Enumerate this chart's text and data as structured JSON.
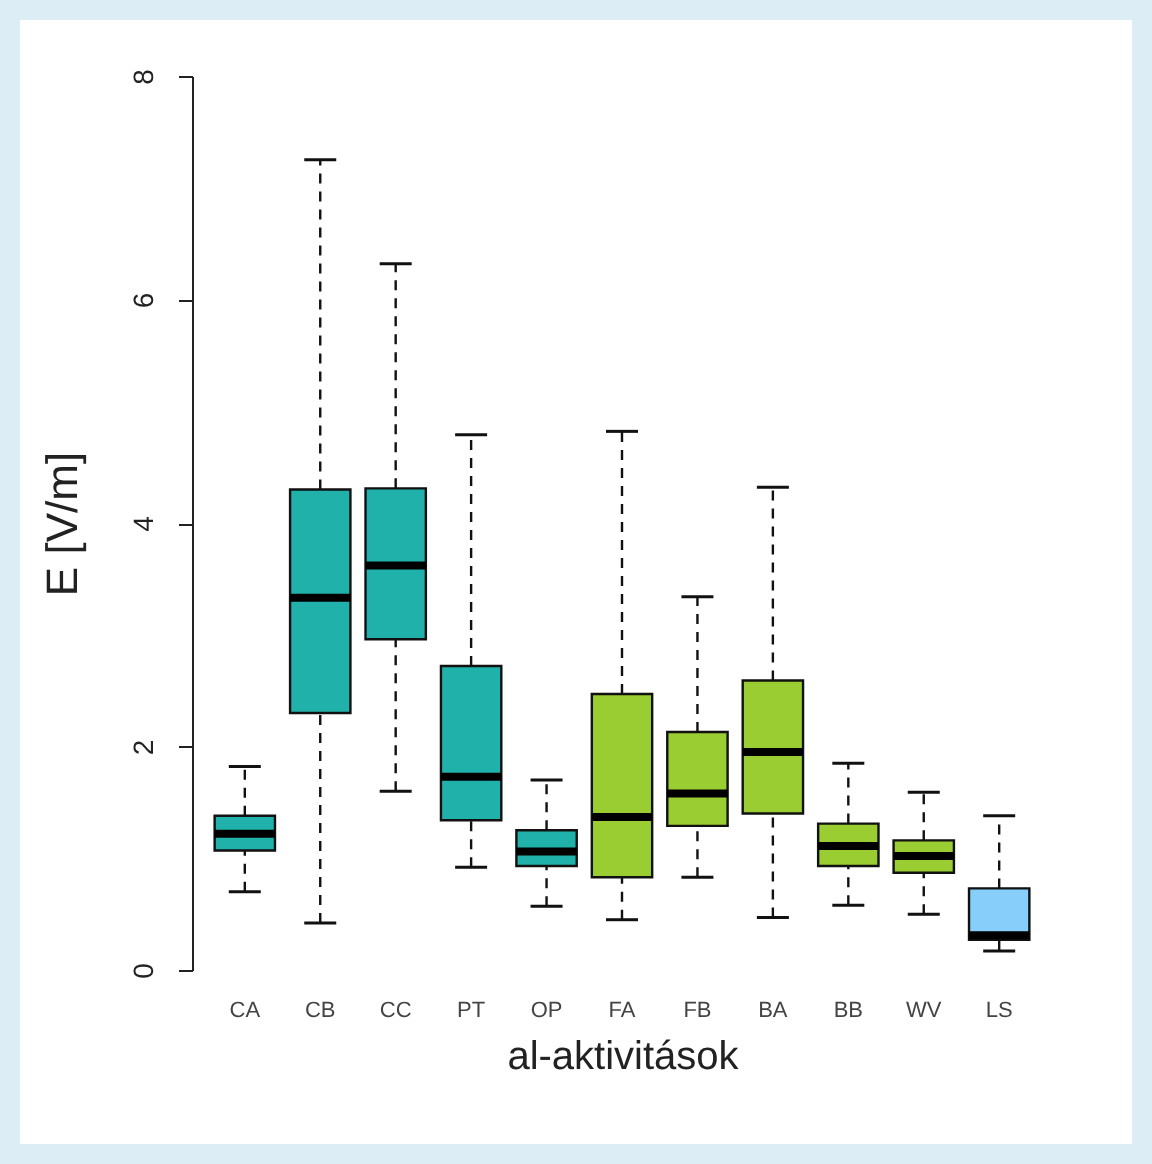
{
  "chart_data": {
    "type": "box",
    "xlabel": "al-aktivitások",
    "ylabel": "E [V/m]",
    "ylim": [
      0,
      8
    ],
    "yticks": [
      0,
      2,
      4,
      6,
      8
    ],
    "line_style": "dashed",
    "categories": [
      "CA",
      "CB",
      "CC",
      "PT",
      "OP",
      "FA",
      "FB",
      "BA",
      "BB",
      "WV",
      "LS"
    ],
    "colors": [
      "#20b2aa",
      "#20b2aa",
      "#20b2aa",
      "#20b2aa",
      "#20b2aa",
      "#9acd32",
      "#9acd32",
      "#9acd32",
      "#9acd32",
      "#9acd32",
      "#87cefa"
    ],
    "boxes": [
      {
        "low": 0.7,
        "q1": 1.07,
        "median": 1.22,
        "q3": 1.38,
        "high": 1.82
      },
      {
        "low": 0.42,
        "q1": 2.3,
        "median": 3.33,
        "q3": 4.3,
        "high": 7.25
      },
      {
        "low": 1.6,
        "q1": 2.96,
        "median": 3.62,
        "q3": 4.31,
        "high": 6.32
      },
      {
        "low": 0.92,
        "q1": 1.34,
        "median": 1.73,
        "q3": 2.72,
        "high": 4.79
      },
      {
        "low": 0.57,
        "q1": 0.93,
        "median": 1.06,
        "q3": 1.25,
        "high": 1.7
      },
      {
        "low": 0.45,
        "q1": 0.83,
        "median": 1.37,
        "q3": 2.47,
        "high": 4.82
      },
      {
        "low": 0.83,
        "q1": 1.29,
        "median": 1.58,
        "q3": 2.13,
        "high": 3.34
      },
      {
        "low": 0.47,
        "q1": 1.4,
        "median": 1.95,
        "q3": 2.59,
        "high": 4.32
      },
      {
        "low": 0.58,
        "q1": 0.93,
        "median": 1.11,
        "q3": 1.31,
        "high": 1.85
      },
      {
        "low": 0.5,
        "q1": 0.87,
        "median": 1.02,
        "q3": 1.16,
        "high": 1.59
      },
      {
        "low": 0.17,
        "q1": 0.27,
        "median": 0.31,
        "q3": 0.73,
        "high": 1.38
      }
    ]
  }
}
